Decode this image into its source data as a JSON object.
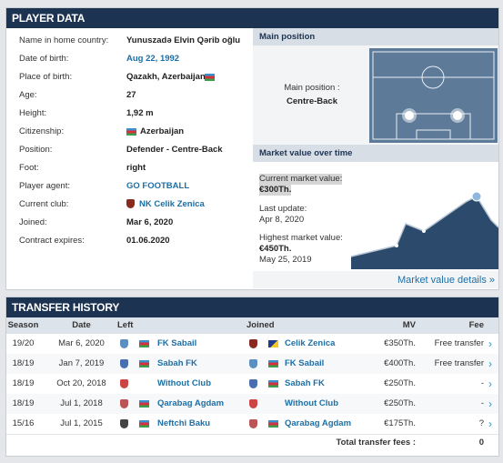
{
  "player_data": {
    "title": "PLAYER DATA",
    "rows": [
      [
        "Name in home country:",
        "Yunuszadə Elvin Qərib oğlu"
      ],
      [
        "Date of birth:",
        "Aug 22, 1992"
      ],
      [
        "Place of birth:",
        "Qazakh, Azerbaijan"
      ],
      [
        "Age:",
        "27"
      ],
      [
        "Height:",
        "1,92 m"
      ],
      [
        "Citizenship:",
        "Azerbaijan"
      ],
      [
        "Position:",
        "Defender - Centre-Back"
      ],
      [
        "Foot:",
        "right"
      ],
      [
        "Player agent:",
        "GO FOOTBALL"
      ],
      [
        "Current club:",
        "NK Celik Zenica"
      ],
      [
        "Joined:",
        "Mar 6, 2020"
      ],
      [
        "Contract expires:",
        "01.06.2020"
      ]
    ]
  },
  "main_position": {
    "title": "Main position",
    "label": "Main position :",
    "value": "Centre-Back"
  },
  "market_value": {
    "title": "Market value over time",
    "current_label": "Current market value:",
    "current_value": "€300Th.",
    "last_update_label": "Last update:",
    "last_update": "Apr 8, 2020",
    "highest_label": "Highest market value:",
    "highest_value": "€450Th.",
    "highest_date": "May 25, 2019",
    "details_link": "Market value details »"
  },
  "transfer_history": {
    "title": "TRANSFER HISTORY",
    "columns": [
      "Season",
      "Date",
      "Left",
      "Joined",
      "MV",
      "Fee"
    ],
    "rows": [
      [
        "19/20",
        "Mar 6, 2020",
        "FK Sabail",
        "Celik Zenica",
        "€350Th.",
        "Free transfer"
      ],
      [
        "18/19",
        "Jan 7, 2019",
        "Sabah FK",
        "FK Sabail",
        "€400Th.",
        "Free transfer"
      ],
      [
        "18/19",
        "Oct 20, 2018",
        "Without Club",
        "Sabah FK",
        "€250Th.",
        "-"
      ],
      [
        "18/19",
        "Jul 1, 2018",
        "Qarabag Agdam",
        "Without Club",
        "€250Th.",
        "-"
      ],
      [
        "15/16",
        "Jul 1, 2015",
        "Neftchi Baku",
        "Qarabag Agdam",
        "€175Th.",
        "?"
      ]
    ],
    "total_label": "Total transfer fees :",
    "total_value": "0"
  }
}
